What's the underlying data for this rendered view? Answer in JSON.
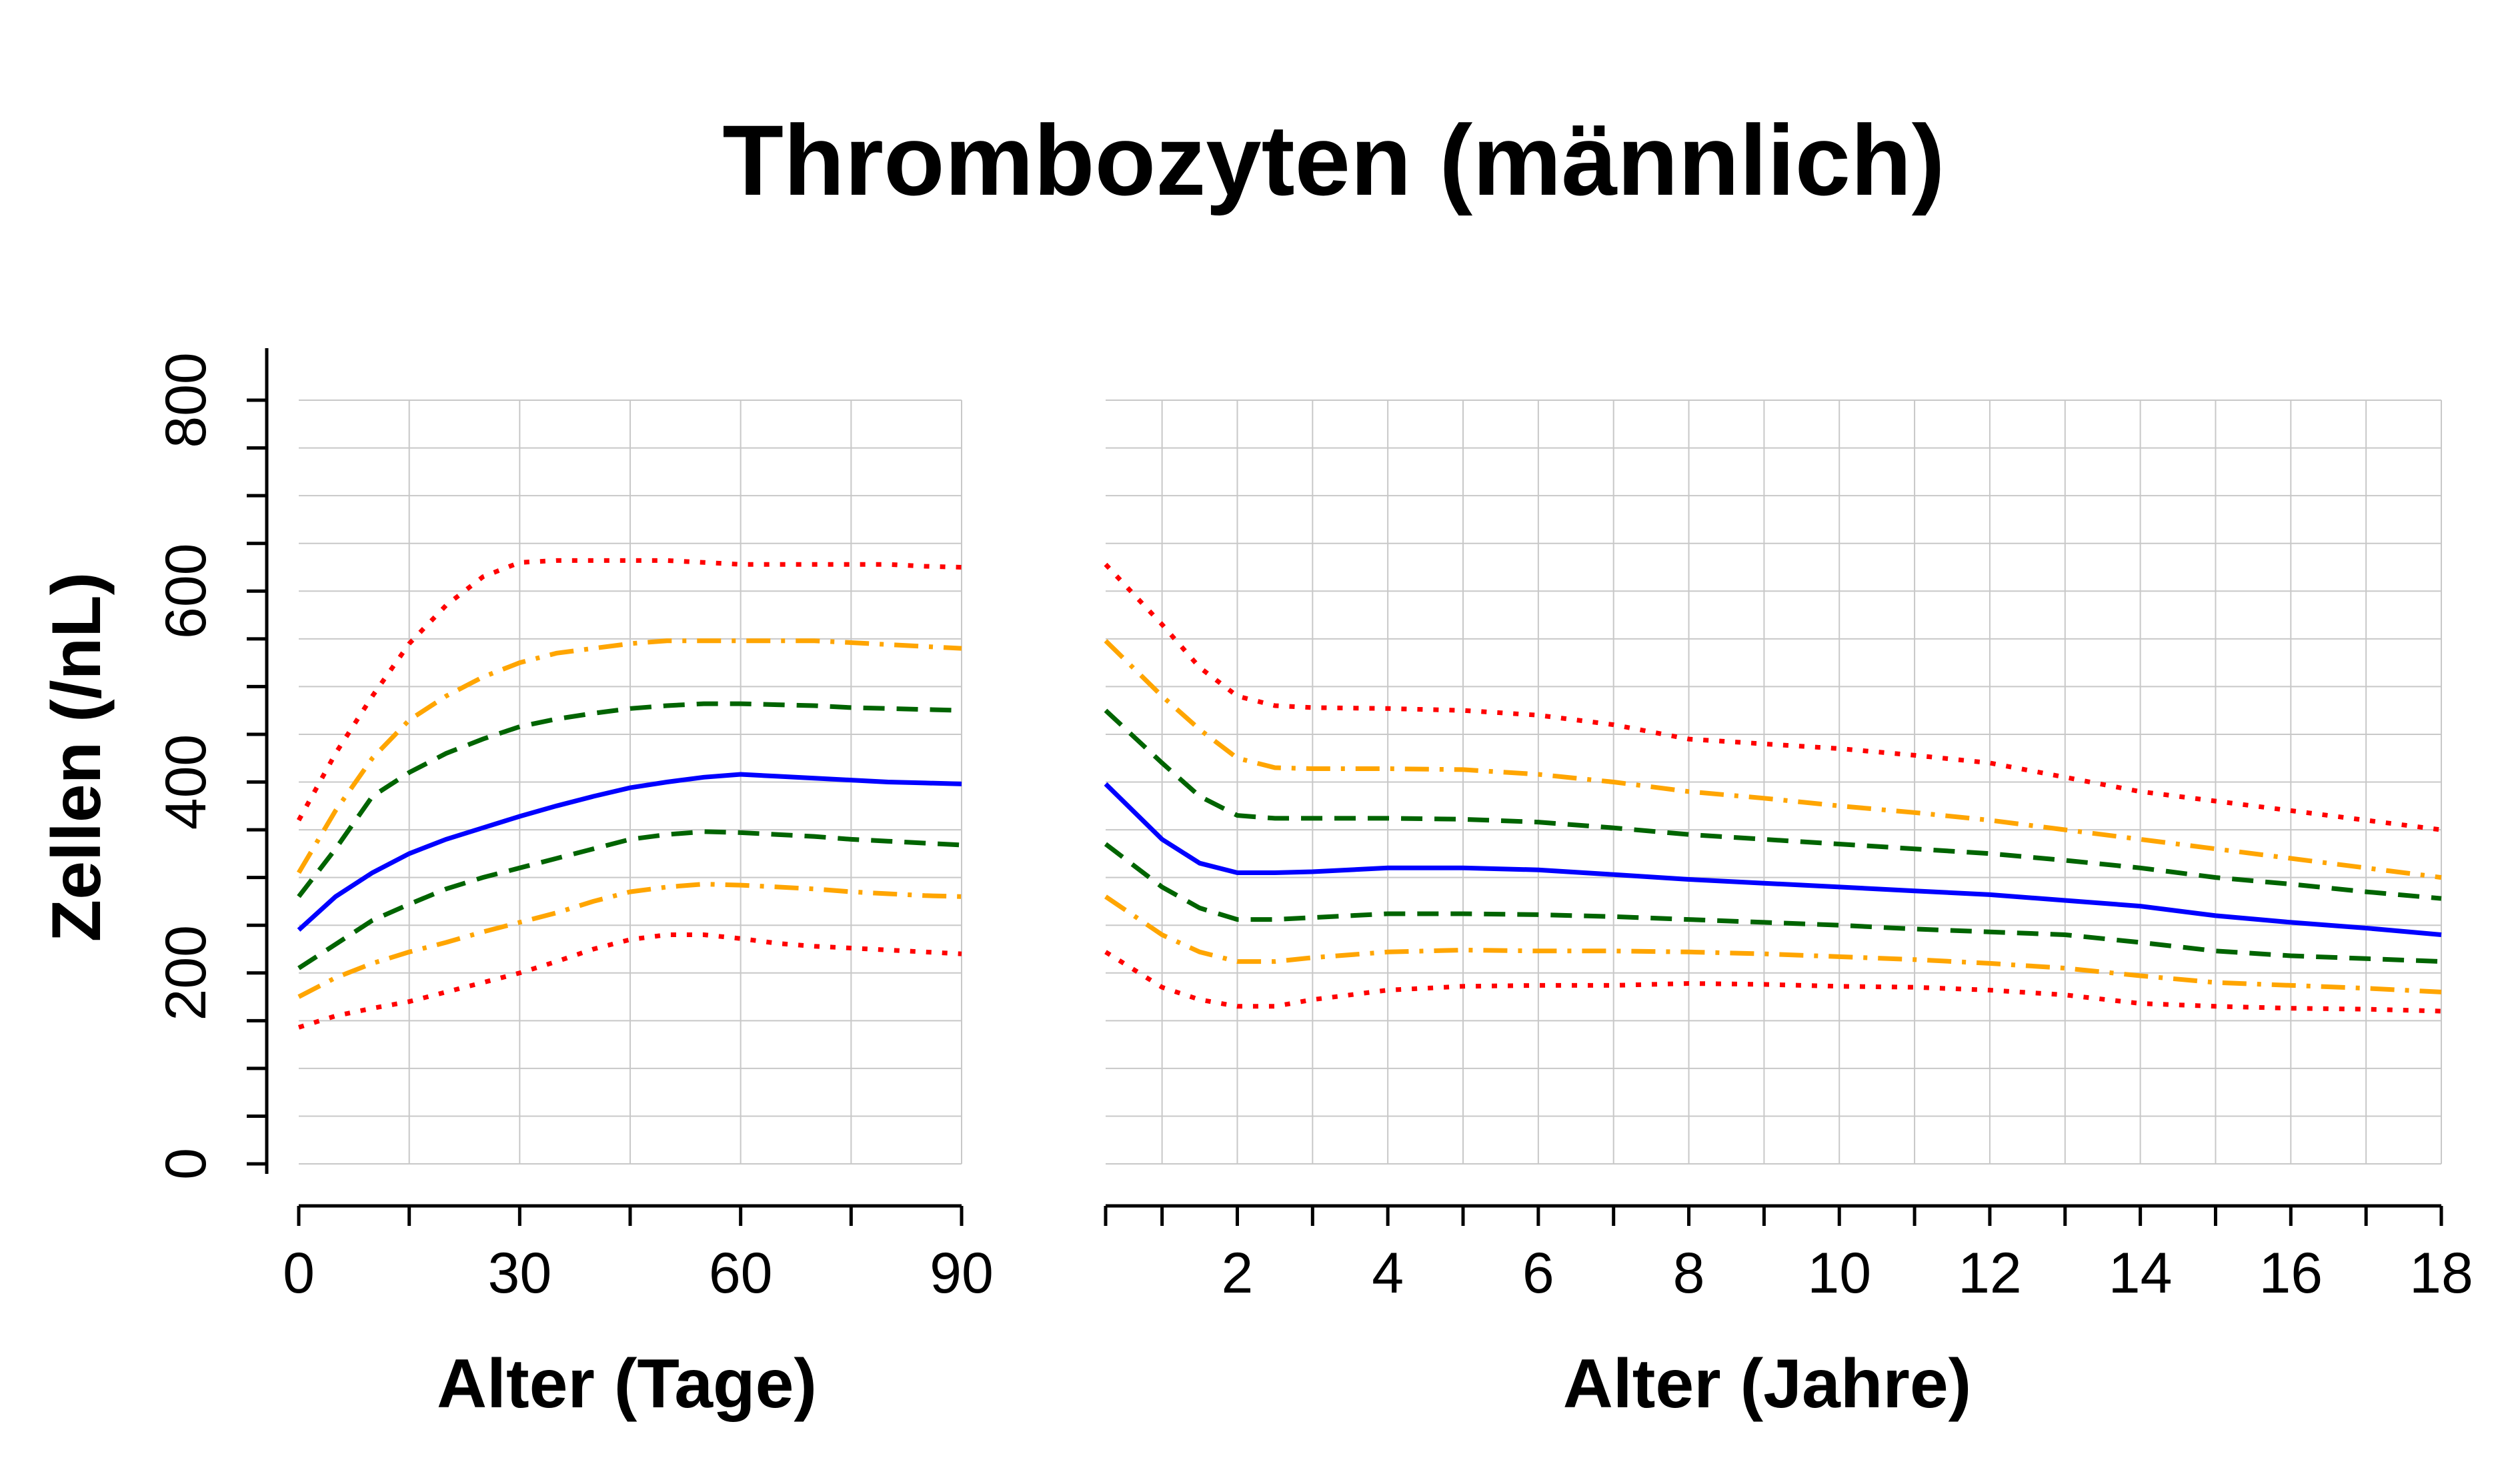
{
  "title": "Thrombozyten (männlich)",
  "ylabel": "Zellen (/nL)",
  "chart_data": [
    {
      "type": "line",
      "xlabel": "Alter (Tage)",
      "ylabel": "Zellen (/nL)",
      "xlim": [
        0,
        90
      ],
      "ylim": [
        0,
        800
      ],
      "xticks": [
        0,
        30,
        60,
        90
      ],
      "yticks": [
        0,
        200,
        400,
        600,
        800
      ],
      "grid": true,
      "x": [
        0,
        5,
        10,
        15,
        20,
        25,
        30,
        35,
        40,
        45,
        50,
        55,
        60,
        65,
        70,
        75,
        80,
        85,
        90
      ],
      "series": [
        {
          "color": "#ff0000",
          "style": "dotted",
          "values": [
            360,
            430,
            490,
            545,
            585,
            615,
            630,
            632,
            632,
            632,
            632,
            630,
            628,
            628,
            628,
            628,
            628,
            626,
            625
          ]
        },
        {
          "color": "#ffa500",
          "style": "dashdot",
          "values": [
            305,
            370,
            425,
            465,
            490,
            510,
            525,
            535,
            540,
            545,
            548,
            548,
            548,
            548,
            548,
            546,
            544,
            542,
            540
          ]
        },
        {
          "color": "#006400",
          "style": "dashed",
          "values": [
            280,
            330,
            385,
            410,
            430,
            445,
            458,
            466,
            472,
            477,
            480,
            482,
            482,
            481,
            480,
            478,
            477,
            476,
            475
          ]
        },
        {
          "color": "#0000ff",
          "style": "solid",
          "values": [
            245,
            280,
            305,
            325,
            340,
            352,
            364,
            375,
            385,
            394,
            400,
            405,
            408,
            406,
            404,
            402,
            400,
            399,
            398
          ]
        },
        {
          "color": "#006400",
          "style": "dashed",
          "values": [
            205,
            230,
            255,
            272,
            288,
            300,
            310,
            320,
            330,
            340,
            345,
            348,
            347,
            345,
            343,
            340,
            338,
            336,
            334
          ]
        },
        {
          "color": "#ffa500",
          "style": "dashdot",
          "values": [
            175,
            195,
            210,
            222,
            232,
            243,
            253,
            263,
            275,
            285,
            290,
            293,
            292,
            290,
            288,
            285,
            283,
            281,
            280
          ]
        },
        {
          "color": "#ff0000",
          "style": "dotted",
          "values": [
            143,
            155,
            163,
            170,
            180,
            190,
            200,
            212,
            225,
            235,
            240,
            240,
            236,
            231,
            228,
            226,
            224,
            222,
            220
          ]
        }
      ]
    },
    {
      "type": "line",
      "xlabel": "Alter (Jahre)",
      "ylabel": "Zellen (/nL)",
      "xlim": [
        0.25,
        18
      ],
      "ylim": [
        0,
        800
      ],
      "xticks": [
        2,
        4,
        6,
        8,
        10,
        12,
        14,
        16,
        18
      ],
      "yticks": [
        0,
        200,
        400,
        600,
        800
      ],
      "grid": true,
      "x": [
        0.25,
        1,
        1.5,
        2,
        2.5,
        3,
        4,
        5,
        6,
        7,
        8,
        9,
        10,
        11,
        12,
        13,
        14,
        15,
        16,
        17,
        18
      ],
      "series": [
        {
          "color": "#ff0000",
          "style": "dotted",
          "values": [
            628,
            565,
            520,
            490,
            480,
            478,
            477,
            475,
            470,
            460,
            445,
            440,
            435,
            428,
            420,
            405,
            390,
            380,
            370,
            360,
            350
          ]
        },
        {
          "color": "#ffa500",
          "style": "dashdot",
          "values": [
            548,
            490,
            455,
            425,
            415,
            414,
            414,
            413,
            408,
            400,
            390,
            383,
            375,
            368,
            360,
            350,
            340,
            330,
            320,
            310,
            300
          ]
        },
        {
          "color": "#006400",
          "style": "dashed",
          "values": [
            475,
            420,
            385,
            365,
            362,
            362,
            362,
            361,
            358,
            352,
            345,
            340,
            335,
            330,
            325,
            318,
            310,
            300,
            293,
            285,
            278
          ]
        },
        {
          "color": "#0000ff",
          "style": "solid",
          "values": [
            398,
            340,
            315,
            305,
            305,
            306,
            310,
            310,
            308,
            303,
            298,
            294,
            290,
            286,
            282,
            276,
            270,
            260,
            253,
            247,
            240
          ]
        },
        {
          "color": "#006400",
          "style": "dashed",
          "values": [
            335,
            290,
            268,
            256,
            256,
            258,
            262,
            262,
            261,
            259,
            256,
            253,
            250,
            246,
            243,
            240,
            232,
            223,
            218,
            215,
            212
          ]
        },
        {
          "color": "#ffa500",
          "style": "dashdot",
          "values": [
            280,
            240,
            222,
            212,
            212,
            216,
            222,
            224,
            223,
            223,
            222,
            220,
            217,
            214,
            210,
            205,
            197,
            190,
            187,
            184,
            180
          ]
        },
        {
          "color": "#ff0000",
          "style": "dotted",
          "values": [
            222,
            185,
            172,
            165,
            165,
            172,
            182,
            186,
            187,
            187,
            189,
            188,
            186,
            185,
            182,
            177,
            168,
            165,
            163,
            162,
            160
          ]
        }
      ]
    }
  ]
}
